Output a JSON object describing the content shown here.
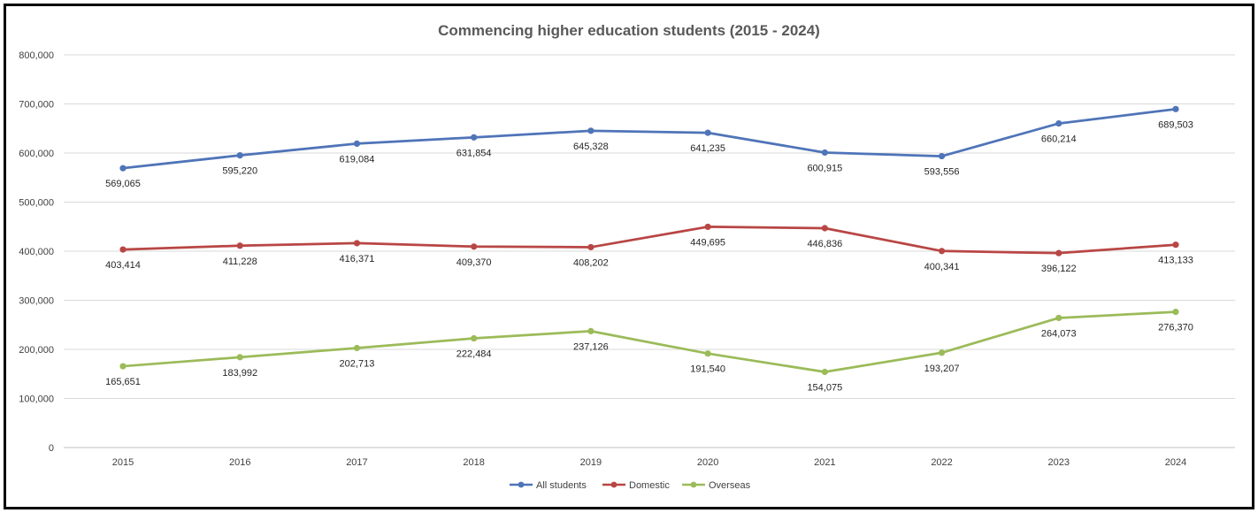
{
  "chart_data": {
    "type": "line",
    "title": "Commencing higher education students (2015 - 2024)",
    "xlabel": "",
    "ylabel": "",
    "ylim": [
      0,
      800000
    ],
    "y_ticks": [
      0,
      100000,
      200000,
      300000,
      400000,
      500000,
      600000,
      700000,
      800000
    ],
    "y_tick_labels": [
      "0",
      "100,000",
      "200,000",
      "300,000",
      "400,000",
      "500,000",
      "600,000",
      "700,000",
      "800,000"
    ],
    "grid": true,
    "legend_position": "bottom",
    "categories": [
      "2015",
      "2016",
      "2017",
      "2018",
      "2019",
      "2020",
      "2021",
      "2022",
      "2023",
      "2024"
    ],
    "series": [
      {
        "name": "All students",
        "color": "#4F74B8",
        "values": [
          569065,
          595220,
          619084,
          631854,
          645328,
          641235,
          600915,
          593556,
          660214,
          689503
        ],
        "labels": [
          "569,065",
          "595,220",
          "619,084",
          "631,854",
          "645,328",
          "641,235",
          "600,915",
          "593,556",
          "660,214",
          "689,503"
        ]
      },
      {
        "name": "Domestic",
        "color": "#B84644",
        "values": [
          403414,
          411228,
          416371,
          409370,
          408202,
          449695,
          446836,
          400341,
          396122,
          413133
        ],
        "labels": [
          "403,414",
          "411,228",
          "416,371",
          "409,370",
          "408,202",
          "449,695",
          "446,836",
          "400,341",
          "396,122",
          "413,133"
        ]
      },
      {
        "name": "Overseas",
        "color": "#9BBB59",
        "values": [
          165651,
          183992,
          202713,
          222484,
          237126,
          191540,
          154075,
          193207,
          264073,
          276370
        ],
        "labels": [
          "165,651",
          "183,992",
          "202,713",
          "222,484",
          "237,126",
          "191,540",
          "154,075",
          "193,207",
          "264,073",
          "276,370"
        ]
      }
    ]
  }
}
